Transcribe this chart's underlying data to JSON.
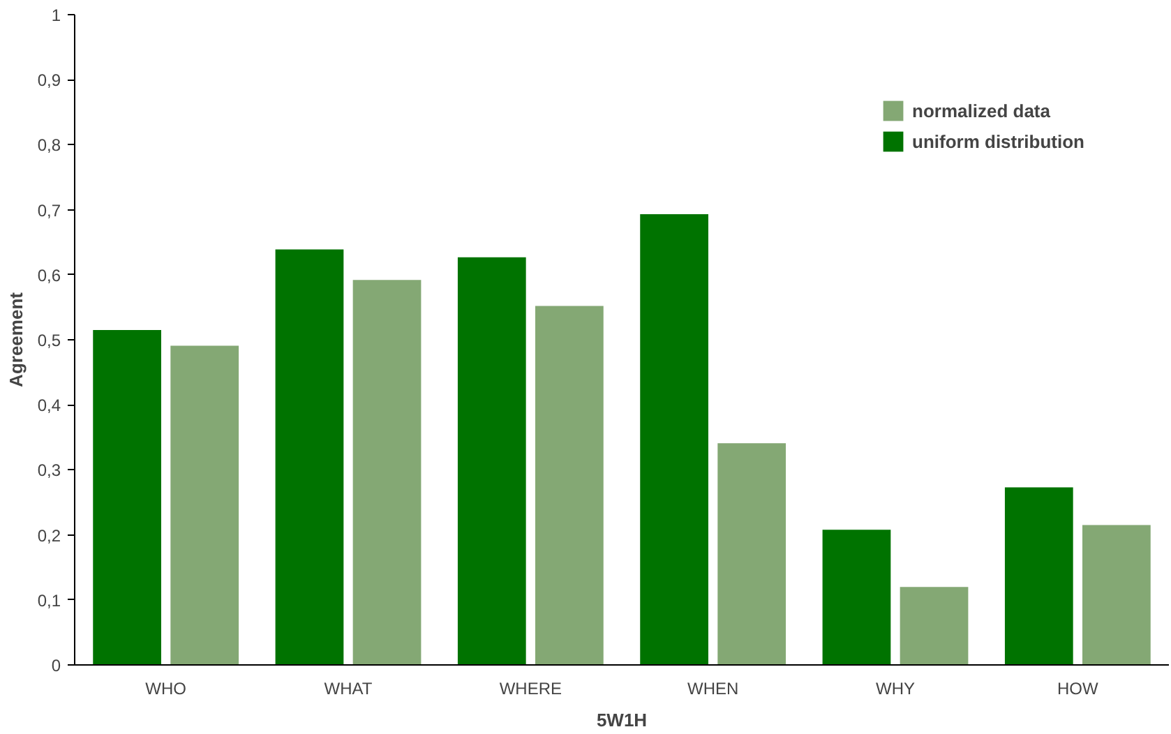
{
  "chart_data": {
    "type": "bar",
    "xlabel": "5W1H",
    "ylabel": "Agreement",
    "categories": [
      "WHO",
      "WHAT",
      "WHERE",
      "WHEN",
      "WHY",
      "HOW"
    ],
    "series": [
      {
        "name": "uniform distribution",
        "color": "#007300",
        "values": [
          0.515,
          0.639,
          0.627,
          0.693,
          0.208,
          0.273
        ]
      },
      {
        "name": "normalized data",
        "color": "#84a874",
        "values": [
          0.491,
          0.592,
          0.552,
          0.341,
          0.12,
          0.215
        ]
      }
    ],
    "ylim": [
      0,
      1
    ],
    "yticks": [
      0,
      {
        "value": 0.1,
        "label": "0,1"
      },
      {
        "value": 0.2,
        "label": "0,2"
      },
      {
        "value": 0.3,
        "label": "0,3"
      },
      {
        "value": 0.4,
        "label": "0,4"
      },
      {
        "value": 0.5,
        "label": "0,5"
      },
      {
        "value": 0.6,
        "label": "0,6"
      },
      {
        "value": 0.7,
        "label": "0,7"
      },
      {
        "value": 0.8,
        "label": "0,8"
      },
      {
        "value": 0.9,
        "label": "0,9"
      },
      1
    ],
    "grid": false,
    "legend": "top right"
  }
}
